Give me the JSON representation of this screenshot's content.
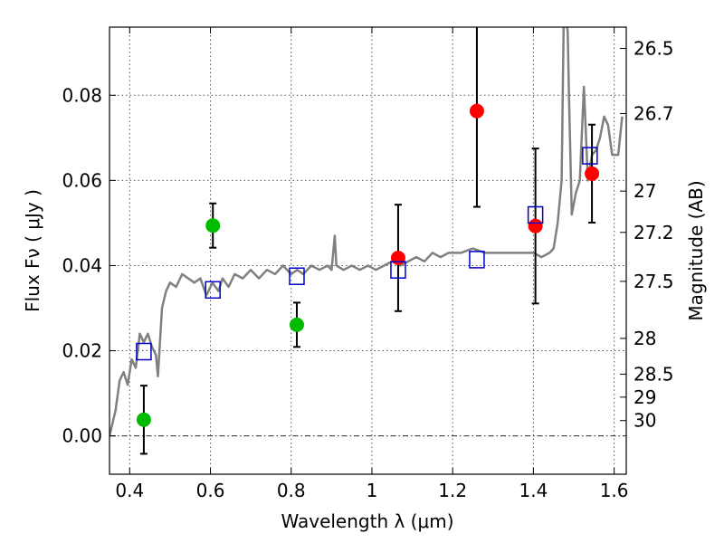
{
  "chart_data": {
    "type": "scatter",
    "xlabel": "Wavelength  λ (μm)",
    "ylabel": "Flux  Fν  ( μJy )",
    "ylabel_right": "Magnitude (AB)",
    "xlim": [
      0.35,
      1.63
    ],
    "ylim": [
      -0.009,
      0.096
    ],
    "xticks": [
      0.4,
      0.6,
      0.8,
      1.0,
      1.2,
      1.4,
      1.6
    ],
    "xtick_labels": [
      "0.4",
      "0.6",
      "0.8",
      "1",
      "1.2",
      "1.4",
      "1.6"
    ],
    "yticks": [
      0.0,
      0.02,
      0.04,
      0.06,
      0.08
    ],
    "ytick_labels": [
      "0.00",
      "0.02",
      "0.04",
      "0.06",
      "0.08"
    ],
    "right_ticks": [
      {
        "label": "26.5",
        "flux": 0.091
      },
      {
        "label": "26.7",
        "flux": 0.0757
      },
      {
        "label": "27",
        "flux": 0.0575
      },
      {
        "label": "27.2",
        "flux": 0.0478
      },
      {
        "label": "27.5",
        "flux": 0.0363
      },
      {
        "label": "28",
        "flux": 0.0229
      },
      {
        "label": "28.5",
        "flux": 0.0145
      },
      {
        "label": "29",
        "flux": 0.0091
      },
      {
        "label": "30",
        "flux": 0.0036
      }
    ],
    "grid": true,
    "colors": {
      "model": "#808080",
      "green": "#00bb00",
      "red": "#ff0000",
      "blue": "#0000cc",
      "errorbar": "#000000"
    },
    "series": [
      {
        "marker": "circle",
        "color": "#00bb00",
        "points": [
          {
            "x": 0.435,
            "y": 0.0038,
            "yerr": 0.008
          },
          {
            "x": 0.606,
            "y": 0.0494,
            "yerr": 0.0052
          },
          {
            "x": 0.814,
            "y": 0.0261,
            "yerr": 0.0052
          }
        ]
      },
      {
        "marker": "circle",
        "color": "#ff0000",
        "points": [
          {
            "x": 1.065,
            "y": 0.0418,
            "yerr": 0.0125
          },
          {
            "x": 1.26,
            "y": 0.0763,
            "yerr": 0.0225
          },
          {
            "x": 1.405,
            "y": 0.0493,
            "yerr": 0.0182
          },
          {
            "x": 1.545,
            "y": 0.0616,
            "yerr": 0.0115
          }
        ]
      },
      {
        "marker": "square",
        "color": "#0000cc",
        "points": [
          {
            "x": 0.435,
            "y": 0.0198
          },
          {
            "x": 0.606,
            "y": 0.0343
          },
          {
            "x": 0.814,
            "y": 0.0375
          },
          {
            "x": 1.065,
            "y": 0.039
          },
          {
            "x": 1.26,
            "y": 0.0414
          },
          {
            "x": 1.405,
            "y": 0.0519
          },
          {
            "x": 1.54,
            "y": 0.0658
          }
        ]
      },
      {
        "type": "line",
        "color": "#808080",
        "points": [
          [
            0.35,
            0.0
          ],
          [
            0.365,
            0.006
          ],
          [
            0.375,
            0.013
          ],
          [
            0.385,
            0.015
          ],
          [
            0.395,
            0.012
          ],
          [
            0.405,
            0.018
          ],
          [
            0.415,
            0.016
          ],
          [
            0.425,
            0.024
          ],
          [
            0.435,
            0.022
          ],
          [
            0.445,
            0.024
          ],
          [
            0.455,
            0.021
          ],
          [
            0.465,
            0.019
          ],
          [
            0.47,
            0.014
          ],
          [
            0.48,
            0.03
          ],
          [
            0.49,
            0.034
          ],
          [
            0.5,
            0.036
          ],
          [
            0.515,
            0.035
          ],
          [
            0.53,
            0.038
          ],
          [
            0.545,
            0.037
          ],
          [
            0.56,
            0.036
          ],
          [
            0.575,
            0.037
          ],
          [
            0.59,
            0.033
          ],
          [
            0.605,
            0.036
          ],
          [
            0.62,
            0.034
          ],
          [
            0.63,
            0.037
          ],
          [
            0.645,
            0.035
          ],
          [
            0.66,
            0.038
          ],
          [
            0.68,
            0.037
          ],
          [
            0.7,
            0.039
          ],
          [
            0.72,
            0.037
          ],
          [
            0.74,
            0.039
          ],
          [
            0.76,
            0.038
          ],
          [
            0.78,
            0.04
          ],
          [
            0.8,
            0.038
          ],
          [
            0.815,
            0.039
          ],
          [
            0.83,
            0.038
          ],
          [
            0.85,
            0.04
          ],
          [
            0.87,
            0.039
          ],
          [
            0.89,
            0.04
          ],
          [
            0.9,
            0.039
          ],
          [
            0.908,
            0.047
          ],
          [
            0.912,
            0.04
          ],
          [
            0.93,
            0.039
          ],
          [
            0.95,
            0.04
          ],
          [
            0.97,
            0.039
          ],
          [
            0.99,
            0.04
          ],
          [
            1.01,
            0.039
          ],
          [
            1.03,
            0.04
          ],
          [
            1.05,
            0.041
          ],
          [
            1.07,
            0.04
          ],
          [
            1.09,
            0.041
          ],
          [
            1.11,
            0.042
          ],
          [
            1.13,
            0.041
          ],
          [
            1.15,
            0.043
          ],
          [
            1.17,
            0.042
          ],
          [
            1.19,
            0.043
          ],
          [
            1.22,
            0.043
          ],
          [
            1.25,
            0.044
          ],
          [
            1.28,
            0.043
          ],
          [
            1.31,
            0.043
          ],
          [
            1.34,
            0.043
          ],
          [
            1.37,
            0.043
          ],
          [
            1.4,
            0.043
          ],
          [
            1.42,
            0.042
          ],
          [
            1.44,
            0.043
          ],
          [
            1.45,
            0.044
          ],
          [
            1.46,
            0.05
          ],
          [
            1.47,
            0.06
          ],
          [
            1.475,
            0.098
          ],
          [
            1.48,
            0.098
          ],
          [
            1.485,
            0.095
          ],
          [
            1.488,
            0.08
          ],
          [
            1.495,
            0.052
          ],
          [
            1.505,
            0.057
          ],
          [
            1.515,
            0.06
          ],
          [
            1.525,
            0.082
          ],
          [
            1.535,
            0.06
          ],
          [
            1.545,
            0.066
          ],
          [
            1.555,
            0.067
          ],
          [
            1.565,
            0.07
          ],
          [
            1.575,
            0.075
          ],
          [
            1.585,
            0.073
          ],
          [
            1.595,
            0.066
          ],
          [
            1.61,
            0.066
          ],
          [
            1.62,
            0.075
          ]
        ]
      }
    ]
  }
}
